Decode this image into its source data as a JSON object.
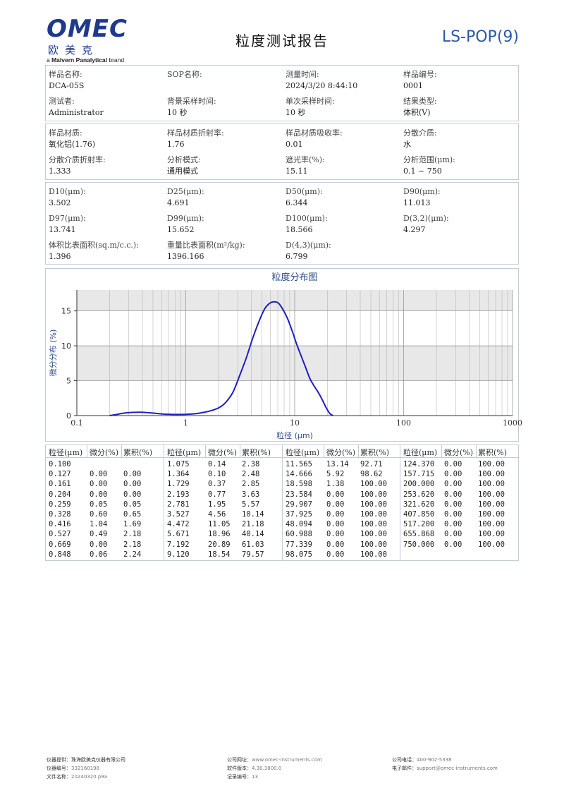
{
  "header": {
    "logo_text": "OMEC",
    "logo_cn": "欧美克",
    "brand_line_prefix": "a ",
    "brand_line_bold": "Malvern Panalytical",
    "brand_line_suffix": " brand",
    "title": "粒度测试报告",
    "code": "LS-POP(9)"
  },
  "info1": {
    "sample_name_label": "样品名称:",
    "sample_name": "DCA-05S",
    "sop_label": "SOP名称:",
    "sop": "",
    "measure_time_label": "测量时间:",
    "measure_time": "2024/3/20 8:44:10",
    "sample_no_label": "样品编号:",
    "sample_no": "0001",
    "tester_label": "测试者:",
    "tester": "Administrator",
    "bg_time_label": "背景采样时间:",
    "bg_time": "10 秒",
    "single_time_label": "单次采样时间:",
    "single_time": "10 秒",
    "result_type_label": "结果类型:",
    "result_type": "体积(V)"
  },
  "info2": {
    "material_label": "样品材质:",
    "material": "氧化铝(1.76)",
    "ri_label": "样品材质折射率:",
    "ri": "1.76",
    "absorb_label": "样品材质吸收率:",
    "absorb": "0.01",
    "medium_label": "分散介质:",
    "medium": "水",
    "medium_ri_label": "分散介质折射率:",
    "medium_ri": "1.333",
    "mode_label": "分析模式:",
    "mode": "通用模式",
    "obscuration_label": "遮光率(%):",
    "obscuration": "15.11",
    "range_label": "分析范围(μm):",
    "range": "0.1 ~ 750"
  },
  "info3": {
    "d10_label": "D10(μm):",
    "d10": "3.502",
    "d25_label": "D25(μm):",
    "d25": "4.691",
    "d50_label": "D50(μm):",
    "d50": "6.344",
    "d90_label": "D90(μm):",
    "d90": "11.013",
    "d97_label": "D97(μm):",
    "d97": "13.741",
    "d99_label": "D99(μm):",
    "d99": "15.652",
    "d100_label": "D100(μm):",
    "d100": "18.566",
    "d32_label": "D(3,2)(μm):",
    "d32": "4.297",
    "ssa_vol_label": "体积比表面积(sq.m/c.c.):",
    "ssa_vol": "1.396",
    "ssa_mass_label": "重量比表面积(m²/kg):",
    "ssa_mass": "1396.166",
    "d43_label": "D(4,3)(μm):",
    "d43": "6.799"
  },
  "chart_data": {
    "type": "line",
    "title": "粒度分布图",
    "xlabel": "粒径 (μm)",
    "ylabel": "微分分布 (%)",
    "x_scale": "log",
    "xlim": [
      0.1,
      1000
    ],
    "ylim": [
      0,
      18
    ],
    "x_ticks": [
      0.1,
      1,
      10,
      100,
      1000
    ],
    "x_tick_labels": [
      "0.1",
      "1",
      "10",
      "100",
      "1000"
    ],
    "y_ticks": [
      0,
      5,
      10,
      15
    ],
    "y_tick_labels": [
      "0",
      "5",
      "10",
      "15"
    ],
    "grid": true,
    "band_color": "#e8e8e8",
    "line_color": "#1f1fbf",
    "series": [
      {
        "x": [
          0.2,
          0.23,
          0.27,
          0.32,
          0.38,
          0.45,
          0.53,
          0.62,
          0.72,
          0.85,
          1.0,
          1.2,
          1.4,
          1.7,
          2.0,
          2.3,
          2.7,
          3.1,
          3.6,
          4.1,
          4.7,
          5.3,
          5.9,
          6.5,
          7.1,
          7.8,
          8.6,
          9.5,
          10.5,
          11.5,
          12.6,
          13.8,
          15.0,
          16.5,
          18.0,
          19.5,
          21.0,
          22.5
        ],
        "y": [
          0.0,
          0.15,
          0.35,
          0.45,
          0.48,
          0.42,
          0.32,
          0.22,
          0.18,
          0.16,
          0.18,
          0.25,
          0.4,
          0.7,
          1.1,
          1.8,
          3.3,
          5.6,
          8.3,
          11.0,
          13.5,
          15.3,
          16.1,
          16.3,
          16.1,
          15.2,
          13.9,
          12.1,
          10.1,
          8.5,
          6.9,
          5.3,
          4.3,
          3.3,
          2.2,
          1.1,
          0.3,
          0.0
        ]
      }
    ]
  },
  "table": {
    "header": [
      "粒径(μm)",
      "微分(%)",
      "累积(%)"
    ],
    "columns": [
      [
        [
          "0.100",
          "",
          ""
        ],
        [
          "0.127",
          "0.00",
          "0.00"
        ],
        [
          "0.161",
          "0.00",
          "0.00"
        ],
        [
          "0.204",
          "0.00",
          "0.00"
        ],
        [
          "0.259",
          "0.05",
          "0.05"
        ],
        [
          "0.328",
          "0.60",
          "0.65"
        ],
        [
          "0.416",
          "1.04",
          "1.69"
        ],
        [
          "0.527",
          "0.49",
          "2.18"
        ],
        [
          "0.669",
          "0.00",
          "2.18"
        ],
        [
          "0.848",
          "0.06",
          "2.24"
        ]
      ],
      [
        [
          "1.075",
          "0.14",
          "2.38"
        ],
        [
          "1.364",
          "0.10",
          "2.48"
        ],
        [
          "1.729",
          "0.37",
          "2.85"
        ],
        [
          "2.193",
          "0.77",
          "3.63"
        ],
        [
          "2.781",
          "1.95",
          "5.57"
        ],
        [
          "3.527",
          "4.56",
          "10.14"
        ],
        [
          "4.472",
          "11.05",
          "21.18"
        ],
        [
          "5.671",
          "18.96",
          "40.14"
        ],
        [
          "7.192",
          "20.89",
          "61.03"
        ],
        [
          "9.120",
          "18.54",
          "79.57"
        ]
      ],
      [
        [
          "11.565",
          "13.14",
          "92.71"
        ],
        [
          "14.666",
          "5.92",
          "98.62"
        ],
        [
          "18.598",
          "1.38",
          "100.00"
        ],
        [
          "23.584",
          "0.00",
          "100.00"
        ],
        [
          "29.907",
          "0.00",
          "100.00"
        ],
        [
          "37.925",
          "0.00",
          "100.00"
        ],
        [
          "48.094",
          "0.00",
          "100.00"
        ],
        [
          "60.988",
          "0.00",
          "100.00"
        ],
        [
          "77.339",
          "0.00",
          "100.00"
        ],
        [
          "98.075",
          "0.00",
          "100.00"
        ]
      ],
      [
        [
          "124.370",
          "0.00",
          "100.00"
        ],
        [
          "157.715",
          "0.00",
          "100.00"
        ],
        [
          "200.000",
          "0.00",
          "100.00"
        ],
        [
          "253.620",
          "0.00",
          "100.00"
        ],
        [
          "321.620",
          "0.00",
          "100.00"
        ],
        [
          "407.850",
          "0.00",
          "100.00"
        ],
        [
          "517.200",
          "0.00",
          "100.00"
        ],
        [
          "655.868",
          "0.00",
          "100.00"
        ],
        [
          "750.000",
          "0.00",
          "100.00"
        ]
      ]
    ]
  },
  "footer": {
    "provider_label": "仪器提供：",
    "provider": "珠海欧美克仪器有限公司",
    "instrument_no_label": "仪器编号：",
    "instrument_no": "332160198",
    "file_label": "文件名称：",
    "file": "20240320.p9a",
    "website_label": "公司网址：",
    "website": "www.omec-instruments.com",
    "software_label": "软件版本：",
    "software": "4.30.3800.0",
    "record_label": "记录编号：",
    "record": "13",
    "phone_label": "公司电话：",
    "phone": "400-902-5338",
    "email_label": "电子邮件：",
    "email": "support@omec-instruments.com"
  }
}
